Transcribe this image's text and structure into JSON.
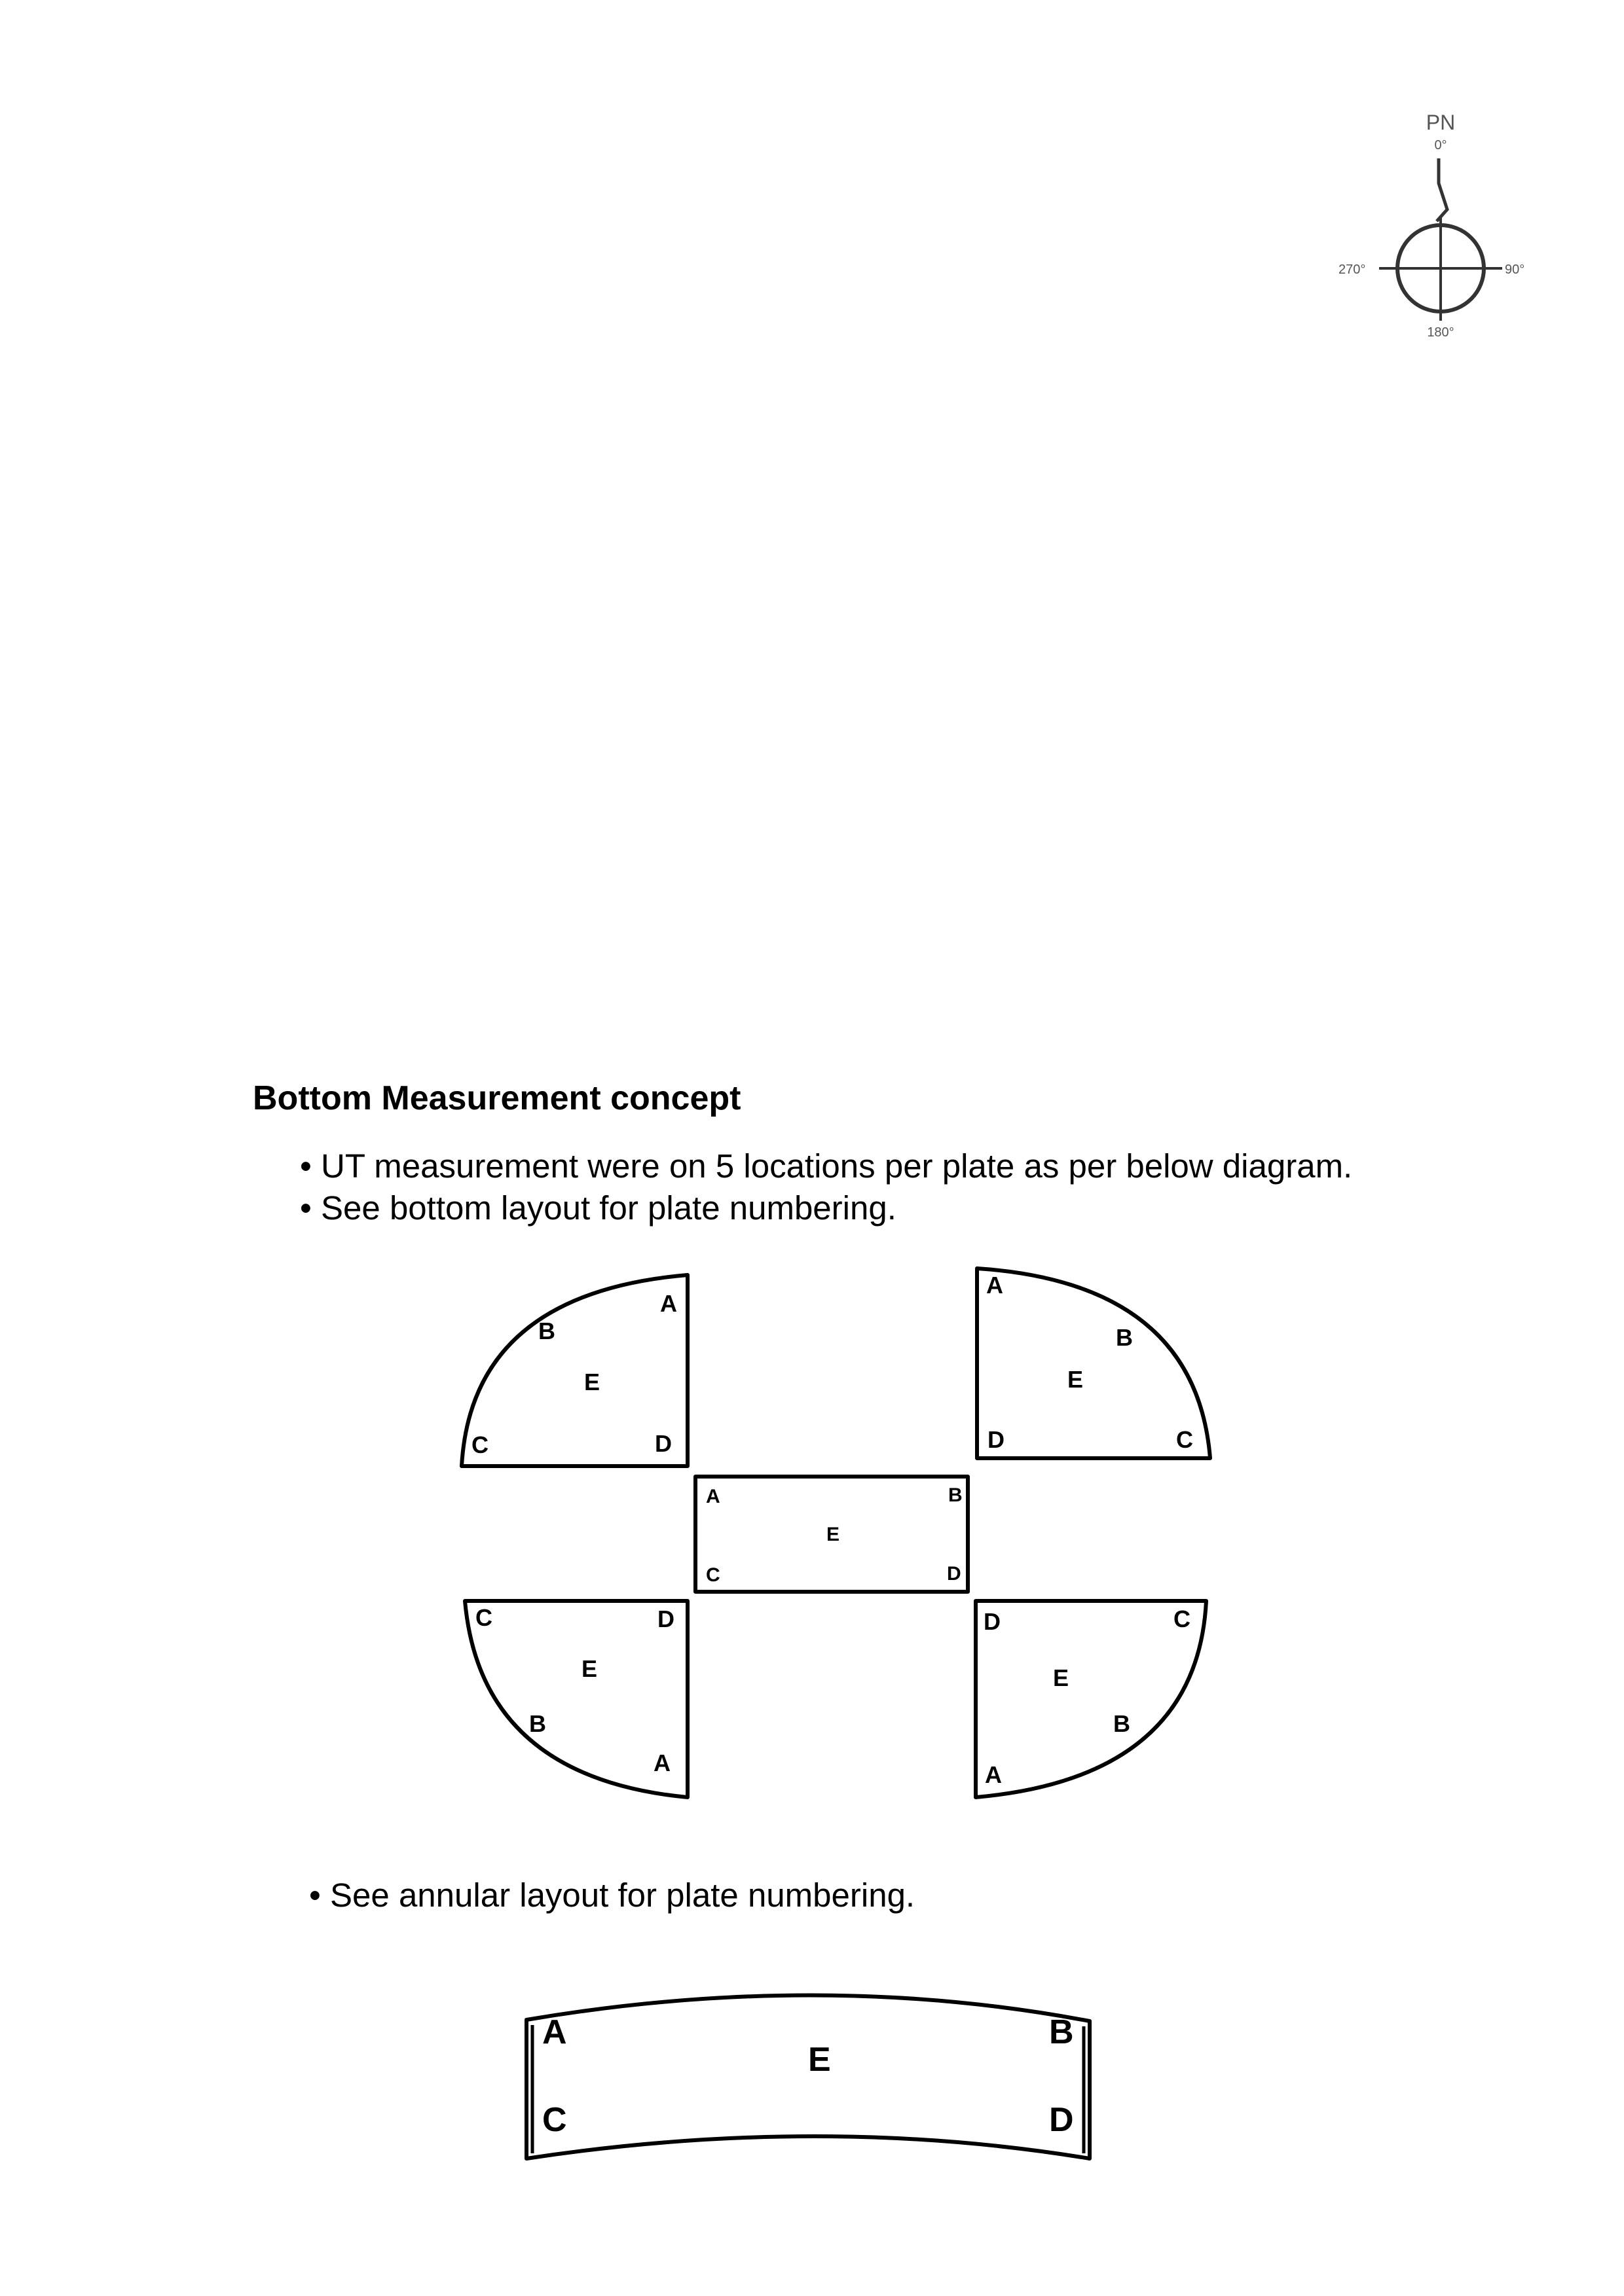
{
  "compass": {
    "north_label": "PN",
    "deg_0": "0°",
    "deg_90": "90°",
    "deg_180": "180°",
    "deg_270": "270°"
  },
  "heading": "Bottom Measurement concept",
  "bullets": [
    "• UT measurement were on 5 locations per plate as per below diagram.",
    "• See bottom layout for plate numbering.",
    "• See annular layout for plate numbering."
  ],
  "bottom_plates": {
    "top_left": {
      "A": "A",
      "B": "B",
      "C": "C",
      "D": "D",
      "E": "E"
    },
    "top_right": {
      "A": "A",
      "B": "B",
      "C": "C",
      "D": "D",
      "E": "E"
    },
    "center": {
      "A": "A",
      "B": "B",
      "C": "C",
      "D": "D",
      "E": "E"
    },
    "bottom_left": {
      "A": "A",
      "B": "B",
      "C": "C",
      "D": "D",
      "E": "E"
    },
    "bottom_right": {
      "A": "A",
      "B": "B",
      "C": "C",
      "D": "D",
      "E": "E"
    }
  },
  "annular_plate": {
    "A": "A",
    "B": "B",
    "C": "C",
    "D": "D",
    "E": "E"
  }
}
